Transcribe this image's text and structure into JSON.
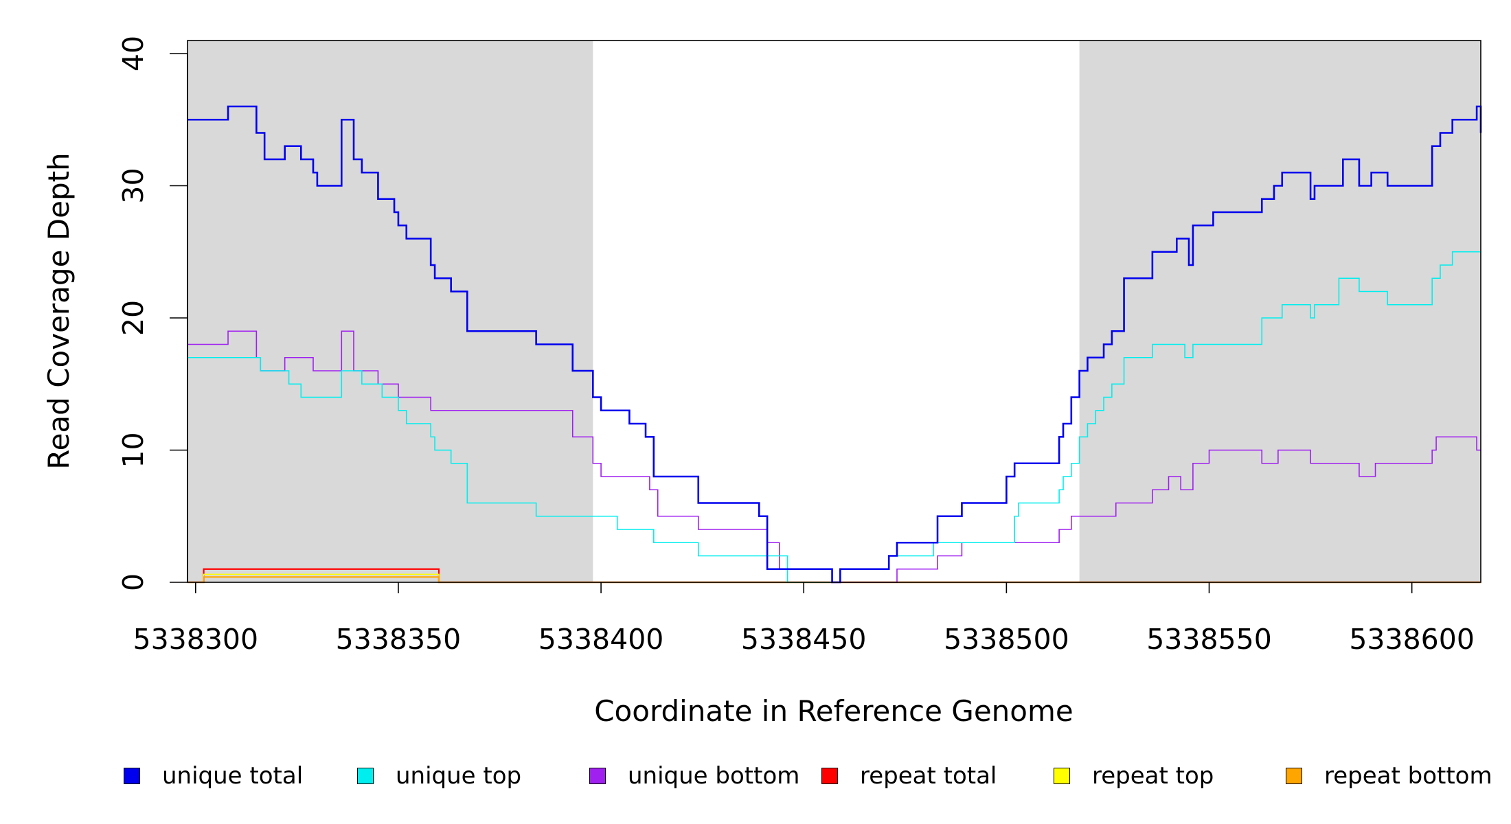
{
  "chart_data": {
    "type": "line",
    "xlabel": "Coordinate in Reference Genome",
    "ylabel": "Read Coverage Depth",
    "xlim": [
      5338298,
      5338617
    ],
    "ylim": [
      0,
      40
    ],
    "x_ticks": [
      5338300,
      5338350,
      5338400,
      5338450,
      5338500,
      5338550,
      5338600
    ],
    "y_ticks": [
      0,
      10,
      20,
      30,
      40
    ],
    "x_tick_labels": [
      "5338300",
      "5338350",
      "5338400",
      "5338450",
      "5338500",
      "5338550",
      "5338600"
    ],
    "y_tick_labels": [
      "0",
      "10",
      "20",
      "30",
      "40"
    ],
    "shaded_regions": [
      {
        "x0": 5338298,
        "x1": 5338398,
        "color": "#d9d9d9"
      },
      {
        "x0": 5338518,
        "x1": 5338617,
        "color": "#d9d9d9"
      }
    ],
    "legend_position": "bottom",
    "series": [
      {
        "name": "unique total",
        "color": "#0000ee",
        "width": 2.6,
        "x": [
          5338298,
          5338308,
          5338315,
          5338317,
          5338322,
          5338326,
          5338329,
          5338330,
          5338336,
          5338339,
          5338341,
          5338345,
          5338349,
          5338350,
          5338352,
          5338358,
          5338359,
          5338363,
          5338367,
          5338384,
          5338393,
          5338398,
          5338400,
          5338407,
          5338411,
          5338413,
          5338424,
          5338439,
          5338441,
          5338457,
          5338459,
          5338471,
          5338473,
          5338483,
          5338489,
          5338500,
          5338502,
          5338513,
          5338514,
          5338516,
          5338518,
          5338520,
          5338524,
          5338526,
          5338529,
          5338536,
          5338542,
          5338545,
          5338546,
          5338551,
          5338563,
          5338566,
          5338568,
          5338575,
          5338576,
          5338583,
          5338587,
          5338590,
          5338594,
          5338600,
          5338605,
          5338607,
          5338610,
          5338616,
          5338617
        ],
        "y": [
          35,
          36,
          34,
          32,
          33,
          32,
          31,
          30,
          35,
          32,
          31,
          29,
          28,
          27,
          26,
          24,
          23,
          22,
          19,
          18,
          16,
          14,
          13,
          12,
          11,
          8,
          6,
          5,
          1,
          0,
          1,
          2,
          3,
          5,
          6,
          8,
          9,
          11,
          12,
          14,
          16,
          17,
          18,
          19,
          23,
          25,
          26,
          24,
          27,
          28,
          29,
          30,
          31,
          29,
          30,
          32,
          30,
          31,
          30,
          30,
          33,
          34,
          35,
          36,
          34
        ]
      },
      {
        "name": "unique top",
        "color": "#00eeee",
        "width": 1.6,
        "x": [
          5338298,
          5338316,
          5338323,
          5338326,
          5338336,
          5338341,
          5338346,
          5338350,
          5338352,
          5338358,
          5338359,
          5338363,
          5338367,
          5338384,
          5338404,
          5338413,
          5338424,
          5338446,
          5338459,
          5338471,
          5338482,
          5338502,
          5338503,
          5338513,
          5338514,
          5338516,
          5338518,
          5338520,
          5338522,
          5338524,
          5338526,
          5338529,
          5338536,
          5338544,
          5338546,
          5338563,
          5338568,
          5338575,
          5338576,
          5338582,
          5338587,
          5338594,
          5338605,
          5338607,
          5338610,
          5338616
        ],
        "y": [
          17,
          16,
          15,
          14,
          16,
          15,
          14,
          13,
          12,
          11,
          10,
          9,
          6,
          5,
          4,
          3,
          2,
          0,
          1,
          2,
          3,
          5,
          6,
          7,
          8,
          9,
          11,
          12,
          13,
          14,
          15,
          17,
          18,
          17,
          18,
          20,
          21,
          20,
          21,
          23,
          22,
          21,
          23,
          24,
          25,
          25
        ]
      },
      {
        "name": "unique bottom",
        "color": "#a020f0",
        "width": 1.6,
        "x": [
          5338298,
          5338308,
          5338315,
          5338316,
          5338322,
          5338329,
          5338336,
          5338339,
          5338345,
          5338350,
          5338358,
          5338393,
          5338398,
          5338400,
          5338412,
          5338414,
          5338424,
          5338441,
          5338444,
          5338457,
          5338473,
          5338483,
          5338489,
          5338513,
          5338516,
          5338527,
          5338536,
          5338540,
          5338543,
          5338546,
          5338550,
          5338563,
          5338567,
          5338575,
          5338587,
          5338591,
          5338605,
          5338606,
          5338616
        ],
        "y": [
          18,
          19,
          17,
          16,
          17,
          16,
          19,
          16,
          15,
          14,
          13,
          11,
          9,
          8,
          7,
          5,
          4,
          3,
          1,
          0,
          1,
          2,
          3,
          4,
          5,
          6,
          7,
          8,
          7,
          9,
          10,
          9,
          10,
          9,
          8,
          9,
          10,
          11,
          10
        ]
      },
      {
        "name": "repeat total",
        "color": "#ff0000",
        "width": 2.2,
        "x": [
          5338298,
          5338302,
          5338360
        ],
        "y": [
          0,
          1,
          0
        ]
      },
      {
        "name": "repeat top",
        "color": "#ffff00",
        "width": 1.6,
        "x": [
          5338298,
          5338302,
          5338360
        ],
        "y": [
          0,
          0.6,
          0
        ]
      },
      {
        "name": "repeat bottom",
        "color": "#ffa500",
        "width": 2.2,
        "x": [
          5338298,
          5338302,
          5338360
        ],
        "y": [
          0,
          0.4,
          0
        ]
      }
    ]
  },
  "legend": {
    "items": [
      {
        "label": "unique total",
        "color": "#0000ee"
      },
      {
        "label": "unique top",
        "color": "#00eeee"
      },
      {
        "label": "unique bottom",
        "color": "#a020f0"
      },
      {
        "label": "repeat total",
        "color": "#ff0000"
      },
      {
        "label": "repeat top",
        "color": "#ffff00"
      },
      {
        "label": "repeat bottom",
        "color": "#ffa500"
      }
    ]
  }
}
